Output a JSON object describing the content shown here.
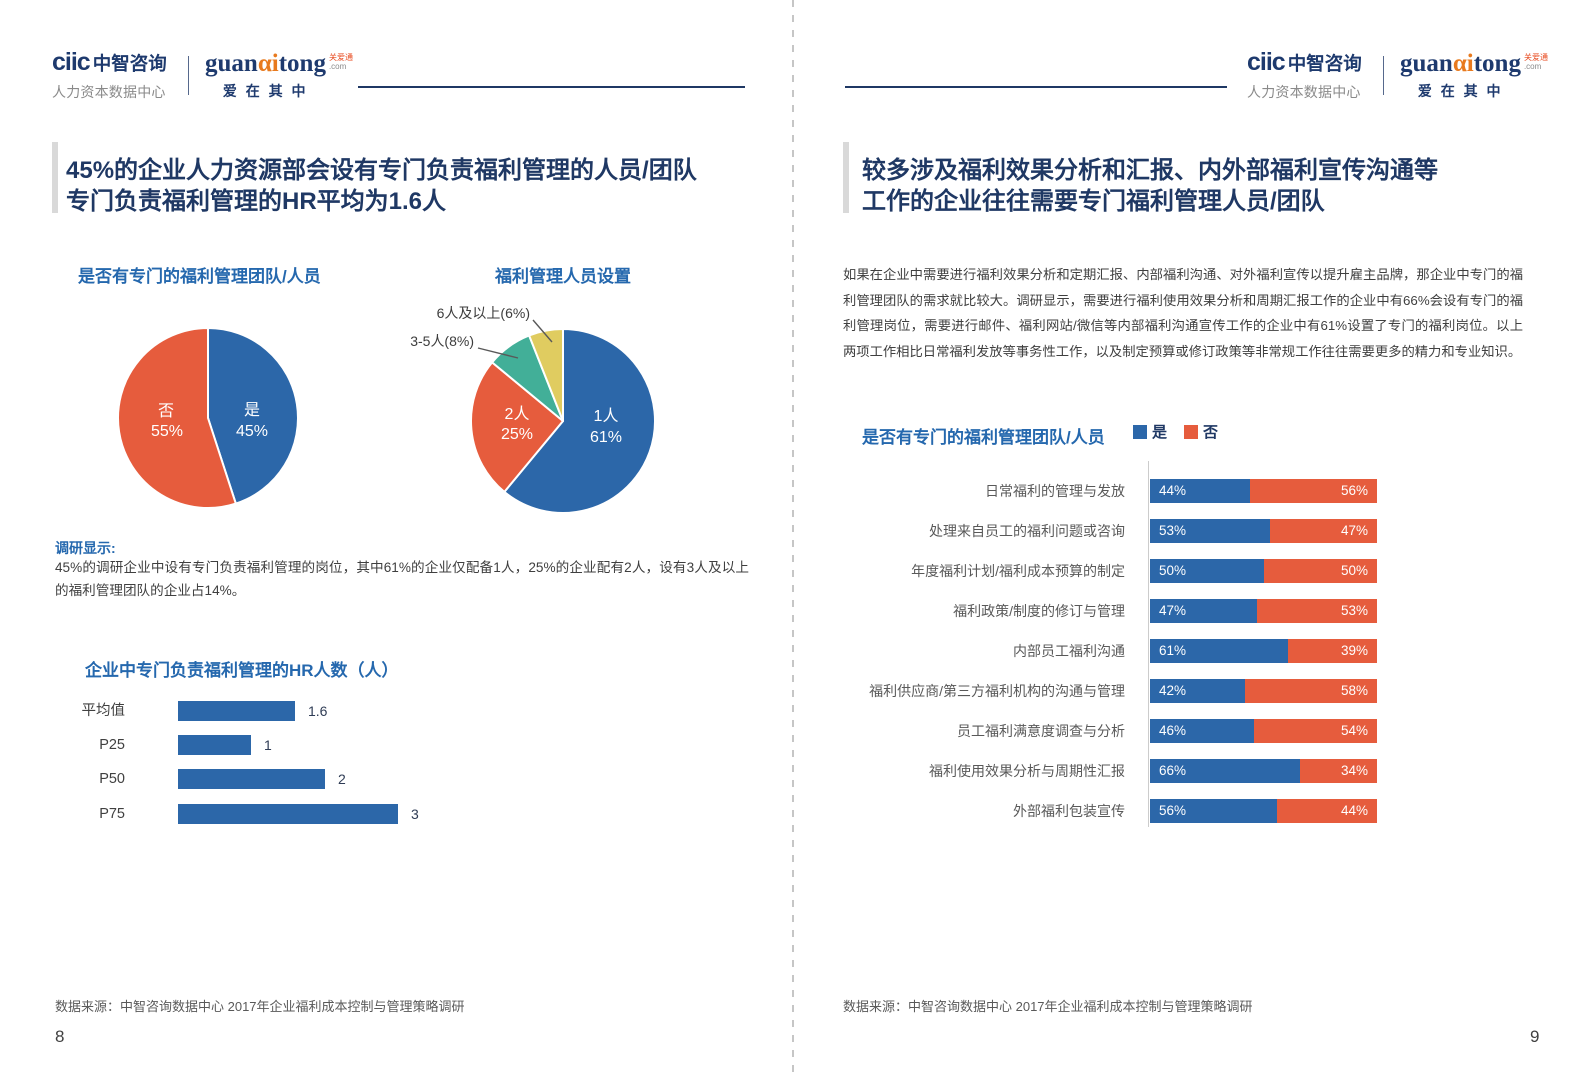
{
  "brand": {
    "ciic_logo": "ciic",
    "ciic_name": "中智咨询",
    "ciic_sub": "人力资本数据中心",
    "gat_word_1": "guan",
    "gat_word_alpha": "αi",
    "gat_word_2": "tong",
    "gat_badge_line1": "关爱通",
    "gat_badge_line2": ".com",
    "gat_slogan": "爱 在 其 中"
  },
  "left_page": {
    "title_line1": "45%的企业人力资源部会设有专门负责福利管理的人员/团队",
    "title_line2": "专门负责福利管理的HR平均为1.6人",
    "note_label": "调研显示:",
    "note_text": "45%的调研企业中设有专门负责福利管理的岗位，其中61%的企业仅配备1人，25%的企业配有2人，设有3人及以上的福利管理团队的企业占14%。",
    "source": "数据来源：中智咨询数据中心 2017年企业福利成本控制与管理策略调研",
    "page_number": "8"
  },
  "right_page": {
    "title_line1": "较多涉及福利效果分析和汇报、内外部福利宣传沟通等",
    "title_line2": "工作的企业往往需要专门福利管理人员/团队",
    "paragraph": "如果在企业中需要进行福利效果分析和定期汇报、内部福利沟通、对外福利宣传以提升雇主品牌，那企业中专门的福利管理团队的需求就比较大。调研显示，需要进行福利使用效果分析和周期汇报工作的企业中有66%会设有专门的福利管理岗位，需要进行邮件、福利网站/微信等内部福利沟通宣传工作的企业中有61%设置了专门的福利岗位。以上两项工作相比日常福利发放等事务性工作，以及制定预算或修订政策等非常规工作往往需要更多的精力和专业知识。",
    "source": "数据来源：中智咨询数据中心 2017年企业福利成本控制与管理策略调研",
    "page_number": "9"
  },
  "colors": {
    "navy": "#1F3864",
    "blue": "#2C67A9",
    "orange": "#E65C3D",
    "teal": "#42AF98",
    "yellow": "#E0CC60",
    "section_blue": "#2568AE"
  },
  "chart_data": [
    {
      "id": "team-pie",
      "type": "pie",
      "title": "是否有专门的福利管理团队/人员",
      "labels": [
        "是",
        "否"
      ],
      "values": [
        45,
        55
      ],
      "colors": [
        "#2C67A9",
        "#E65C3D"
      ],
      "start_angle_deg": 0,
      "direction": "clockwise"
    },
    {
      "id": "staff-pie",
      "type": "pie",
      "title": "福利管理人员设置",
      "labels": [
        "1人",
        "2人",
        "3-5人",
        "6人及以上"
      ],
      "values": [
        61,
        25,
        8,
        6
      ],
      "colors": [
        "#2C67A9",
        "#E65C3D",
        "#42AF98",
        "#E0CC60"
      ],
      "callout_labels": [
        "3-5人(8%)",
        "6人及以上(6%)"
      ],
      "start_angle_deg": 0,
      "direction": "clockwise"
    },
    {
      "id": "hr-count-bar",
      "type": "bar",
      "orientation": "horizontal",
      "title": "企业中专门负责福利管理的HR人数（人）",
      "categories": [
        "平均值",
        "P25",
        "P50",
        "P75"
      ],
      "values": [
        1.6,
        1,
        2,
        3
      ],
      "value_labels": [
        "1.6",
        "1",
        "2",
        "3"
      ],
      "color": "#2C67A9",
      "xlim": [
        0,
        3.3
      ]
    },
    {
      "id": "task-stacked-bar",
      "type": "bar",
      "orientation": "horizontal-stacked",
      "title": "是否有专门的福利管理团队/人员",
      "legend": [
        "是",
        "否"
      ],
      "legend_colors": [
        "#2C67A9",
        "#E65C3D"
      ],
      "categories": [
        "日常福利的管理与发放",
        "处理来自员工的福利问题或咨询",
        "年度福利计划/福利成本预算的制定",
        "福利政策/制度的修订与管理",
        "内部员工福利沟通",
        "福利供应商/第三方福利机构的沟通与管理",
        "员工福利满意度调查与分析",
        "福利使用效果分析与周期性汇报",
        "外部福利包装宣传"
      ],
      "series": [
        {
          "name": "是",
          "values": [
            44,
            53,
            50,
            47,
            61,
            42,
            46,
            66,
            56
          ]
        },
        {
          "name": "否",
          "values": [
            56,
            47,
            50,
            53,
            39,
            58,
            54,
            34,
            44
          ]
        }
      ],
      "xlim": [
        0,
        100
      ]
    }
  ]
}
